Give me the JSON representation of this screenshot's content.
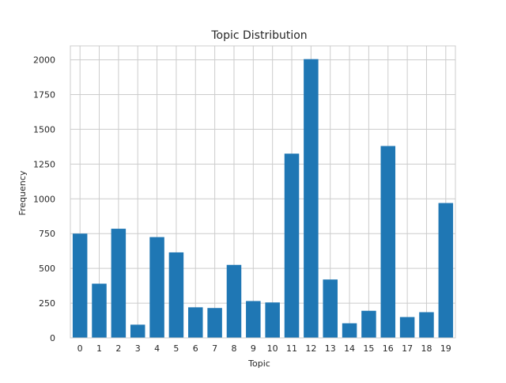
{
  "chart_data": {
    "type": "bar",
    "title": "Topic Distribution",
    "xlabel": "Topic",
    "ylabel": "Frequency",
    "categories": [
      "0",
      "1",
      "2",
      "3",
      "4",
      "5",
      "6",
      "7",
      "8",
      "9",
      "10",
      "11",
      "12",
      "13",
      "14",
      "15",
      "16",
      "17",
      "18",
      "19"
    ],
    "values": [
      750,
      390,
      785,
      95,
      725,
      615,
      220,
      215,
      525,
      265,
      255,
      1325,
      2005,
      420,
      105,
      195,
      1380,
      150,
      185,
      970
    ],
    "ylim": [
      0,
      2100
    ],
    "yticks": [
      0,
      250,
      500,
      750,
      1000,
      1250,
      1500,
      1750,
      2000
    ],
    "ytick_labels": [
      "0",
      "250",
      "500",
      "750",
      "1000",
      "1250",
      "1500",
      "1750",
      "2000"
    ],
    "grid": true,
    "colors": {
      "bar": "#1f77b4",
      "grid": "#cccccc",
      "spine": "#cccccc",
      "text": "#262626"
    }
  }
}
